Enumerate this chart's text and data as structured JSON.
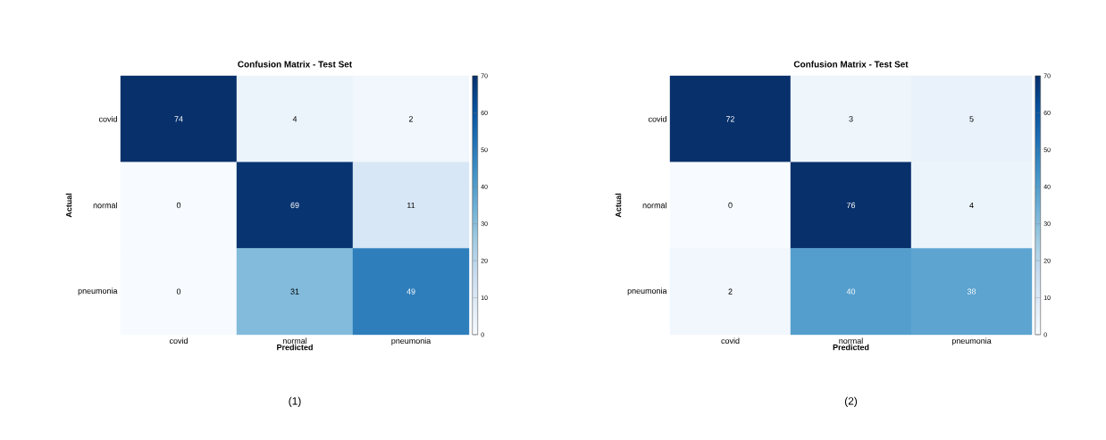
{
  "chart_data": [
    {
      "type": "heatmap",
      "title": "Confusion Matrix - Test Set",
      "xlabel": "Predicted",
      "ylabel": "Actual",
      "categories": [
        "covid",
        "normal",
        "pneumonia"
      ],
      "y_categories": [
        "covid",
        "normal",
        "pneumonia"
      ],
      "cells": [
        [
          74,
          4,
          2
        ],
        [
          0,
          69,
          11
        ],
        [
          0,
          31,
          49
        ]
      ],
      "clim": [
        0,
        70
      ],
      "cticks": [
        0,
        10,
        20,
        30,
        40,
        50,
        60,
        70
      ],
      "data_labels": true,
      "annotations": [
        "(1)"
      ]
    },
    {
      "type": "heatmap",
      "title": "Confusion Matrix - Test Set",
      "xlabel": "Predicted",
      "ylabel": "Actual",
      "categories": [
        "covid",
        "normal",
        "pneumonia"
      ],
      "y_categories": [
        "covid",
        "normal",
        "pneumonia"
      ],
      "cells": [
        [
          72,
          3,
          5
        ],
        [
          0,
          76,
          4
        ],
        [
          2,
          40,
          38
        ]
      ],
      "clim": [
        0,
        70
      ],
      "cticks": [
        0,
        10,
        20,
        30,
        40,
        50,
        60,
        70
      ],
      "data_labels": true,
      "annotations": [
        "(2)"
      ]
    }
  ]
}
